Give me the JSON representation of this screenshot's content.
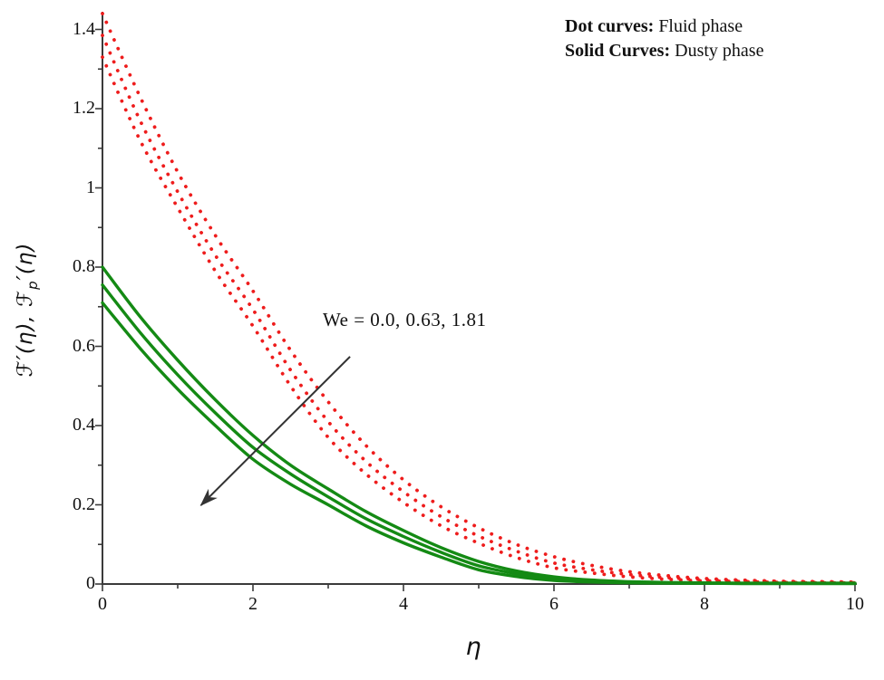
{
  "figure": {
    "background": "#ffffff"
  },
  "legend": {
    "entries": [
      {
        "label": "Dot curves:",
        "text": "Fluid phase"
      },
      {
        "label": "Solid Curves:",
        "text": "Dusty phase"
      }
    ]
  },
  "chart_data": {
    "type": "line",
    "title": "",
    "xlabel": "η",
    "ylabel": "ℱ′(η), ℱp′(η)",
    "ylabel_parts": {
      "pre": "ℱ′(η), ℱ",
      "sub": "p",
      "post": "′(η)"
    },
    "xlim": [
      0,
      10
    ],
    "ylim": [
      0,
      1.45
    ],
    "grid": false,
    "legend_position": "top-right",
    "x_major_ticks": {
      "values": [
        0,
        2,
        4,
        6,
        8,
        10
      ],
      "labels": [
        "0",
        "2",
        "4",
        "6",
        "8",
        "10"
      ]
    },
    "x_minor_ticks": [
      1,
      3,
      5,
      7,
      9
    ],
    "y_major_ticks": {
      "values": [
        0,
        0.2,
        0.4,
        0.6,
        0.8,
        1,
        1.2,
        1.4
      ],
      "labels": [
        "0",
        "0.2",
        "0.4",
        "0.6",
        "0.8",
        "1",
        "1.2",
        "1.4"
      ]
    },
    "y_minor_ticks": [
      0.1,
      0.3,
      0.5,
      0.7,
      0.9,
      1.1,
      1.3
    ],
    "colors": {
      "fluid": "#ee1c1c",
      "dusty": "#148a14",
      "axis": "#3b3b3b",
      "arrow": "#333333"
    },
    "x": [
      0,
      0.5,
      1,
      1.5,
      2,
      2.5,
      3,
      3.5,
      4,
      4.5,
      5,
      5.5,
      6,
      6.5,
      7,
      7.5,
      8,
      8.5,
      9,
      9.5,
      10
    ],
    "series": [
      {
        "name": "Fluid phase, We = 0.0",
        "phase": "fluid",
        "style": "dotted",
        "values": [
          1.44,
          1.23,
          1.04,
          0.88,
          0.74,
          0.59,
          0.46,
          0.35,
          0.263,
          0.195,
          0.142,
          0.1,
          0.069,
          0.047,
          0.031,
          0.021,
          0.014,
          0.01,
          0.007,
          0.006,
          0.005
        ]
      },
      {
        "name": "Fluid phase, We = 0.63",
        "phase": "fluid",
        "style": "dotted",
        "values": [
          1.385,
          1.17,
          0.99,
          0.83,
          0.693,
          0.54,
          0.41,
          0.31,
          0.233,
          0.17,
          0.121,
          0.083,
          0.053,
          0.036,
          0.024,
          0.016,
          0.011,
          0.008,
          0.006,
          0.005,
          0.004
        ]
      },
      {
        "name": "Fluid phase, We = 1.81",
        "phase": "fluid",
        "style": "dotted",
        "values": [
          1.33,
          1.12,
          0.95,
          0.79,
          0.651,
          0.5,
          0.37,
          0.278,
          0.206,
          0.147,
          0.103,
          0.067,
          0.041,
          0.028,
          0.018,
          0.012,
          0.008,
          0.006,
          0.004,
          0.003,
          0.003
        ]
      },
      {
        "name": "Dusty phase, We = 0.0",
        "phase": "dusty",
        "style": "solid",
        "values": [
          0.8,
          0.675,
          0.565,
          0.465,
          0.375,
          0.3,
          0.24,
          0.183,
          0.135,
          0.092,
          0.057,
          0.033,
          0.018,
          0.01,
          0.006,
          0.004,
          0.003,
          0.002,
          0.002,
          0.002,
          0.002
        ]
      },
      {
        "name": "Dusty phase, We = 0.63",
        "phase": "dusty",
        "style": "solid",
        "values": [
          0.755,
          0.635,
          0.528,
          0.432,
          0.345,
          0.278,
          0.22,
          0.165,
          0.12,
          0.08,
          0.046,
          0.026,
          0.013,
          0.007,
          0.004,
          0.003,
          0.002,
          0.002,
          0.002,
          0.002,
          0.002
        ]
      },
      {
        "name": "Dusty phase, We = 1.81",
        "phase": "dusty",
        "style": "solid",
        "values": [
          0.71,
          0.595,
          0.492,
          0.4,
          0.315,
          0.252,
          0.2,
          0.147,
          0.104,
          0.068,
          0.036,
          0.019,
          0.009,
          0.005,
          0.003,
          0.002,
          0.002,
          0.001,
          0.001,
          0.001,
          0.001
        ]
      }
    ],
    "annotation": {
      "text": "We = 0.0, 0.63, 1.81",
      "arrow_from_eta": 3.29,
      "arrow_from_val": 0.574,
      "arrow_to_eta": 1.31,
      "arrow_to_val": 0.199
    }
  }
}
